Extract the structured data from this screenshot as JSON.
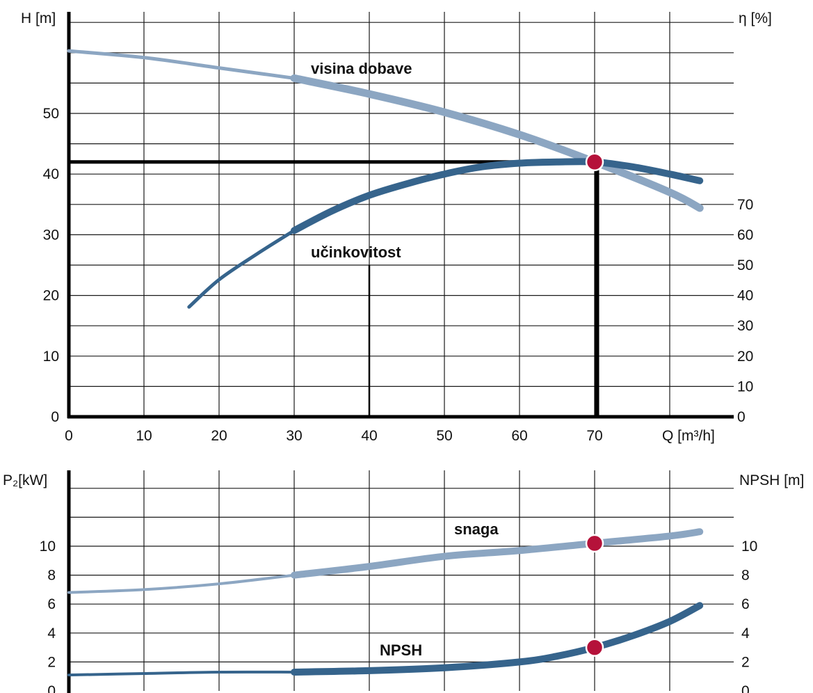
{
  "colors": {
    "light_curve": "#8ca6c2",
    "dark_curve": "#36648c",
    "marker": "#b5123a"
  },
  "chart_data": [
    {
      "type": "line",
      "xlabel": "Q  [m³/h]",
      "ylabel_left": "H [m]",
      "ylabel_right": "η [%]",
      "xlim": [
        0,
        88
      ],
      "ylim_left": [
        0,
        65
      ],
      "x_ticks": [
        "0",
        "10",
        "20",
        "30",
        "40",
        "50",
        "60",
        "70"
      ],
      "y_ticks_left": [
        "0",
        "10",
        "20",
        "30",
        "40",
        "50"
      ],
      "y_ticks_right": [
        "0",
        "10",
        "20",
        "30",
        "40",
        "50",
        "60",
        "70"
      ],
      "right_axis_units_per_H": 2.0,
      "series": [
        {
          "name": "visina dobave",
          "axis": "left",
          "x": [
            0,
            10,
            20,
            30,
            40,
            50,
            60,
            70,
            80,
            84
          ],
          "y": [
            60.3,
            59.2,
            57.5,
            55.8,
            53.2,
            50.2,
            46.5,
            42.0,
            37.0,
            34.4
          ]
        },
        {
          "name": "učinkovitost",
          "axis": "left",
          "x": [
            16,
            20,
            25,
            30,
            35,
            40,
            45,
            50,
            55,
            60,
            65,
            70,
            75,
            80,
            84
          ],
          "y": [
            18.1,
            22.6,
            26.8,
            30.7,
            33.9,
            36.5,
            38.4,
            40.0,
            41.2,
            41.8,
            42.0,
            42.0,
            41.2,
            40.0,
            38.9
          ]
        }
      ],
      "annotations": [
        {
          "type": "operating_point",
          "x": 70,
          "y": 42
        },
        {
          "type": "hline",
          "y": 42,
          "x_end": 70
        },
        {
          "type": "vline",
          "x": 70,
          "y_end": 42
        },
        {
          "type": "vline",
          "x": 40,
          "y_end": 25
        }
      ]
    },
    {
      "type": "line",
      "ylabel_left": "P₂[kW]",
      "ylabel_right": "NPSH [m]",
      "xlim": [
        0,
        88
      ],
      "ylim": [
        0,
        14
      ],
      "y_ticks_left": [
        "0",
        "2",
        "4",
        "6",
        "8",
        "10"
      ],
      "y_ticks_right": [
        "0",
        "2",
        "4",
        "6",
        "8",
        "10"
      ],
      "series": [
        {
          "name": "snaga",
          "x": [
            0,
            10,
            20,
            30,
            40,
            50,
            60,
            70,
            80,
            84
          ],
          "y": [
            6.8,
            7.0,
            7.4,
            8.0,
            8.6,
            9.3,
            9.7,
            10.2,
            10.7,
            11.0
          ]
        },
        {
          "name": "NPSH",
          "x": [
            0,
            10,
            20,
            30,
            40,
            50,
            60,
            65,
            70,
            75,
            80,
            84
          ],
          "y": [
            1.1,
            1.2,
            1.3,
            1.3,
            1.4,
            1.6,
            2.0,
            2.4,
            3.0,
            3.8,
            4.8,
            5.9
          ]
        }
      ],
      "annotations": [
        {
          "type": "operating_point",
          "x": 70,
          "y": 10.2
        },
        {
          "type": "operating_point",
          "x": 70,
          "y": 3.0
        }
      ]
    }
  ]
}
